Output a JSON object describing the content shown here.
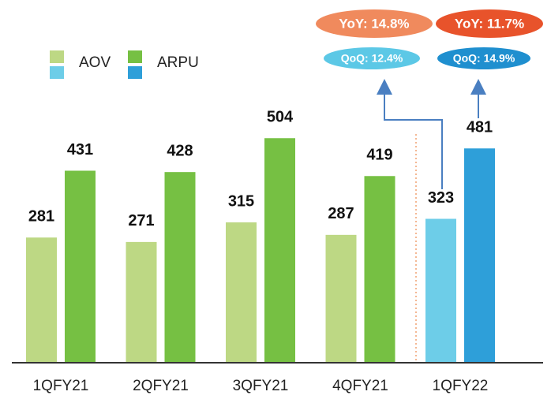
{
  "chart_data": {
    "type": "bar",
    "categories": [
      "1QFY21",
      "2QFY21",
      "3QFY21",
      "4QFY21",
      "1QFY22"
    ],
    "series": [
      {
        "name": "AOV",
        "color": "#bdd884",
        "colors": [
          "#bdd884",
          "#bdd884",
          "#bdd884",
          "#bdd884",
          "#6dcde8"
        ],
        "values": [
          281,
          271,
          315,
          287,
          323
        ]
      },
      {
        "name": "ARPU",
        "color": "#76c043",
        "colors": [
          "#76c043",
          "#76c043",
          "#76c043",
          "#76c043",
          "#2e9fd9"
        ],
        "values": [
          431,
          428,
          504,
          419,
          481
        ]
      }
    ],
    "ylim": [
      0,
      800
    ],
    "annotations": [
      "YoY: 14.8%",
      "YoY: 11.7%",
      "QoQ: 12.4%",
      "QoQ: 14.9%"
    ],
    "annotation_colors": [
      "#f08a5d",
      "#e8532b",
      "#5cc8e6",
      "#1f8fcf"
    ]
  }
}
